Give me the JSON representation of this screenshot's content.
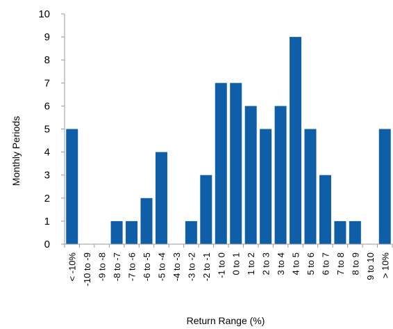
{
  "chart_data": {
    "type": "bar",
    "title": "",
    "xlabel": "Return Range (%)",
    "ylabel": "Monthly Periods",
    "ylim": [
      0,
      10
    ],
    "yticks": [
      0,
      1,
      2,
      3,
      4,
      5,
      6,
      7,
      8,
      9,
      10
    ],
    "grid": false,
    "legend": "none",
    "bar_color": "#0e5ea8",
    "categories": [
      "< -10%",
      "-10 to -9",
      "-9 to -8",
      "-8 to -7",
      "-7 to -6",
      "-6 to -5",
      "-5 to -4",
      "-4 to -3",
      "-3 to -2",
      "-2 to -1",
      "-1 to 0",
      "0 to 1",
      "1 to 2",
      "2 to 3",
      "3 to 4",
      "4 to 5",
      "5 to 6",
      "6 to 7",
      "7 to 8",
      "8 to 9",
      "9 to 10",
      "> 10%"
    ],
    "values": [
      5,
      0,
      0,
      1,
      1,
      2,
      4,
      0,
      1,
      3,
      7,
      7,
      6,
      5,
      6,
      9,
      5,
      3,
      1,
      1,
      0,
      5
    ]
  }
}
